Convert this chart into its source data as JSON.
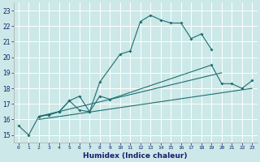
{
  "xlabel": "Humidex (Indice chaleur)",
  "xlim": [
    -0.5,
    23.5
  ],
  "ylim": [
    14.5,
    23.5
  ],
  "xticks": [
    0,
    1,
    2,
    3,
    4,
    5,
    6,
    7,
    8,
    9,
    10,
    11,
    12,
    13,
    14,
    15,
    16,
    17,
    18,
    19,
    20,
    21,
    22,
    23
  ],
  "yticks": [
    15,
    16,
    17,
    18,
    19,
    20,
    21,
    22,
    23
  ],
  "background_color": "#cce8e8",
  "grid_color": "#b8d8d8",
  "line_color": "#1e6e6e",
  "lines": [
    {
      "x": [
        0,
        1,
        2,
        3,
        4,
        5,
        6,
        7,
        8,
        10,
        11,
        12,
        13,
        14,
        15,
        16,
        17,
        18,
        19
      ],
      "y": [
        15.6,
        15.0,
        16.2,
        16.3,
        16.5,
        17.2,
        16.6,
        16.5,
        18.4,
        20.2,
        20.4,
        22.3,
        22.7,
        22.4,
        22.2,
        22.2,
        21.2,
        21.5,
        20.5
      ],
      "marker": true
    },
    {
      "x": [
        2,
        3,
        4,
        5,
        6,
        7,
        8,
        9,
        19,
        20,
        21,
        22,
        23
      ],
      "y": [
        16.2,
        16.3,
        16.5,
        17.2,
        17.5,
        16.5,
        17.5,
        17.3,
        19.5,
        18.3,
        18.3,
        18.0,
        18.5
      ],
      "marker": true
    },
    {
      "x": [
        2,
        23
      ],
      "y": [
        16.0,
        18.0
      ],
      "marker": false
    },
    {
      "x": [
        2,
        20
      ],
      "y": [
        16.2,
        19.0
      ],
      "marker": false
    }
  ]
}
